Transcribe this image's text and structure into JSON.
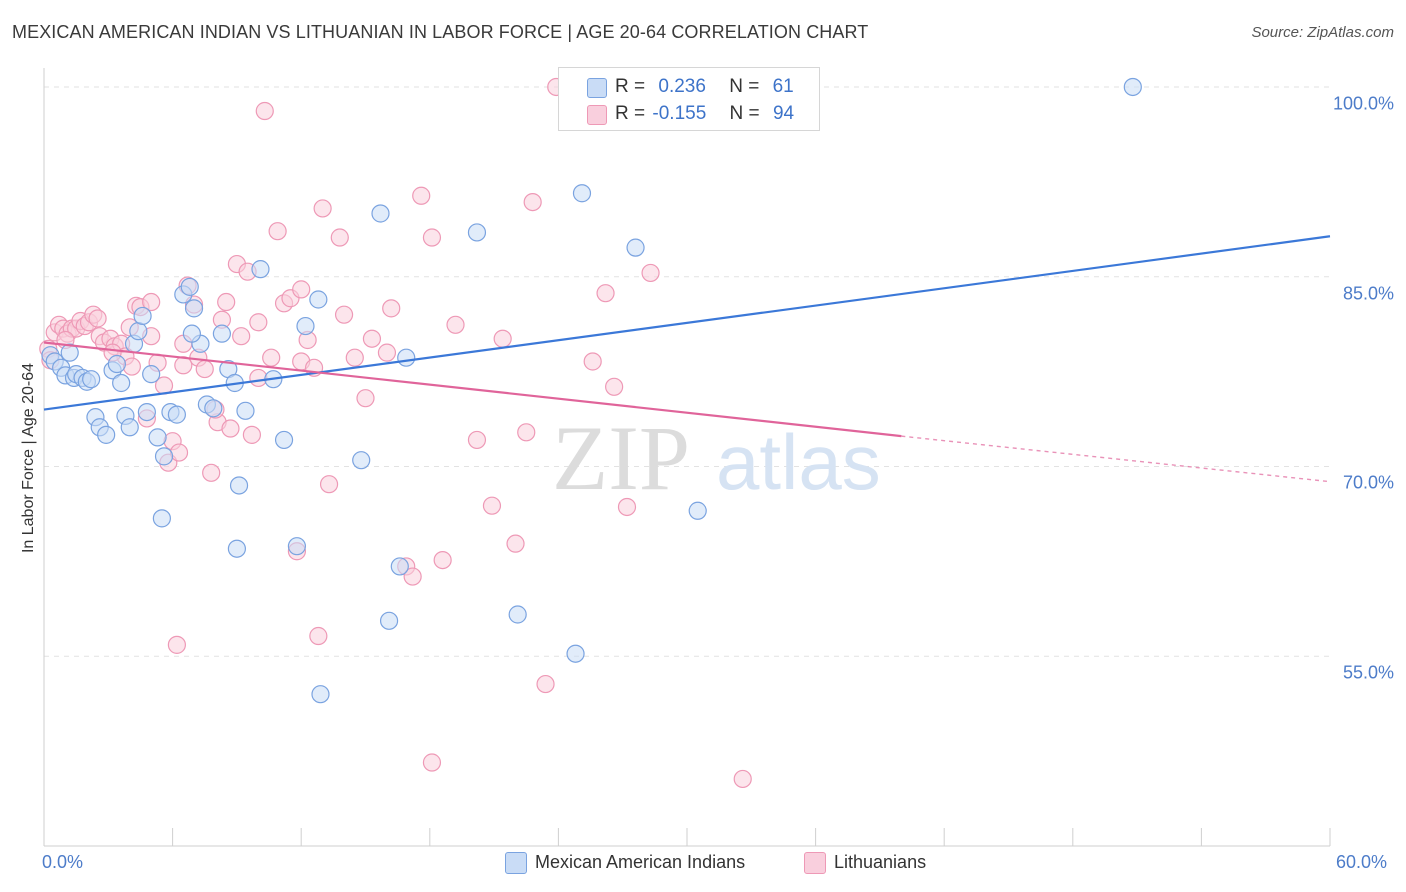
{
  "title": "MEXICAN AMERICAN INDIAN VS LITHUANIAN IN LABOR FORCE | AGE 20-64 CORRELATION CHART",
  "source": "Source: ZipAtlas.com",
  "watermark": {
    "zip": "ZIP",
    "atlas": "atlas"
  },
  "legend": {
    "r_label": "R =",
    "n_label": "N =",
    "blue": {
      "r": "0.236",
      "n": "61"
    },
    "pink": {
      "r": "-0.155",
      "n": "94"
    }
  },
  "bottom_legend": {
    "blue": "Mexican American Indians",
    "pink": "Lithuanians"
  },
  "colors": {
    "blue": "#3b78d8",
    "pink": "#e0649a",
    "blue_fill": "#c9dcf6",
    "pink_fill": "#f9cfdd",
    "tick": "#4d7cc9"
  },
  "chart_data": {
    "type": "scatter",
    "title": "MEXICAN AMERICAN INDIAN VS LITHUANIAN IN LABOR FORCE | AGE 20-64 CORRELATION CHART",
    "xlabel": "",
    "ylabel": "In Labor Force | Age 20-64",
    "xlim": [
      0,
      60
    ],
    "ylim": [
      40,
      101.5
    ],
    "x_tick_labels": [
      {
        "value": 0,
        "label": "0.0%"
      },
      {
        "value": 60,
        "label": "60.0%"
      }
    ],
    "y_tick_labels": [
      {
        "value": 100,
        "label": "100.0%"
      },
      {
        "value": 85,
        "label": "85.0%"
      },
      {
        "value": 70,
        "label": "70.0%"
      },
      {
        "value": 55,
        "label": "55.0%"
      }
    ],
    "series": [
      {
        "name": "Mexican American Indians",
        "color": "#3b78d8",
        "r": 0.236,
        "n": 61,
        "trend": {
          "x0": 0,
          "y0": 74.5,
          "x1": 60,
          "y1": 88.2
        },
        "points": [
          [
            0.3,
            78.8
          ],
          [
            0.5,
            78.3
          ],
          [
            0.8,
            77.8
          ],
          [
            1.0,
            77.2
          ],
          [
            1.2,
            79.0
          ],
          [
            1.4,
            77.0
          ],
          [
            1.5,
            77.3
          ],
          [
            1.8,
            77.0
          ],
          [
            2.0,
            76.7
          ],
          [
            2.2,
            76.9
          ],
          [
            2.4,
            73.9
          ],
          [
            2.6,
            73.1
          ],
          [
            2.9,
            72.5
          ],
          [
            3.2,
            77.6
          ],
          [
            3.4,
            78.1
          ],
          [
            3.6,
            76.6
          ],
          [
            3.8,
            74.0
          ],
          [
            4.0,
            73.1
          ],
          [
            4.2,
            79.7
          ],
          [
            4.4,
            80.7
          ],
          [
            4.6,
            81.9
          ],
          [
            4.8,
            74.3
          ],
          [
            5.0,
            77.3
          ],
          [
            5.3,
            72.3
          ],
          [
            5.6,
            70.8
          ],
          [
            5.9,
            74.3
          ],
          [
            6.2,
            74.1
          ],
          [
            6.5,
            83.6
          ],
          [
            6.8,
            84.2
          ],
          [
            7.0,
            82.5
          ],
          [
            7.3,
            79.7
          ],
          [
            7.6,
            74.9
          ],
          [
            7.9,
            74.6
          ],
          [
            8.3,
            80.5
          ],
          [
            8.6,
            77.7
          ],
          [
            8.9,
            76.6
          ],
          [
            9.1,
            68.5
          ],
          [
            9.4,
            74.4
          ],
          [
            10.1,
            85.6
          ],
          [
            10.7,
            76.9
          ],
          [
            11.2,
            72.1
          ],
          [
            11.8,
            63.7
          ],
          [
            12.2,
            81.1
          ],
          [
            12.8,
            83.2
          ],
          [
            14.8,
            70.5
          ],
          [
            15.7,
            90.0
          ],
          [
            16.1,
            57.8
          ],
          [
            16.6,
            62.1
          ],
          [
            16.9,
            78.6
          ],
          [
            20.2,
            88.5
          ],
          [
            22.1,
            58.3
          ],
          [
            24.8,
            55.2
          ],
          [
            25.1,
            91.6
          ],
          [
            27.6,
            87.3
          ],
          [
            30.5,
            66.5
          ],
          [
            34.2,
            100.0
          ],
          [
            50.8,
            100.0
          ],
          [
            5.5,
            65.9
          ],
          [
            9.0,
            63.5
          ],
          [
            12.9,
            52.0
          ],
          [
            6.9,
            80.5
          ]
        ]
      },
      {
        "name": "Lithuanians",
        "color": "#e0649a",
        "r": -0.155,
        "n": 94,
        "trend": {
          "x0": 0,
          "y0": 79.8,
          "x1": 40,
          "y1": 72.4,
          "dash_to_x": 60,
          "dash_to_y": 68.8
        },
        "points": [
          [
            0.2,
            79.3
          ],
          [
            0.3,
            78.4
          ],
          [
            0.5,
            80.6
          ],
          [
            0.7,
            81.2
          ],
          [
            0.9,
            80.9
          ],
          [
            1.1,
            80.5
          ],
          [
            1.3,
            80.9
          ],
          [
            1.5,
            80.9
          ],
          [
            1.7,
            81.5
          ],
          [
            1.9,
            81.1
          ],
          [
            2.1,
            81.4
          ],
          [
            2.3,
            82.0
          ],
          [
            2.6,
            80.3
          ],
          [
            2.8,
            79.8
          ],
          [
            3.1,
            80.1
          ],
          [
            3.3,
            79.5
          ],
          [
            3.6,
            79.7
          ],
          [
            3.8,
            78.7
          ],
          [
            4.1,
            77.9
          ],
          [
            4.3,
            82.7
          ],
          [
            4.5,
            82.6
          ],
          [
            4.8,
            73.8
          ],
          [
            5.0,
            80.3
          ],
          [
            5.3,
            78.2
          ],
          [
            5.6,
            76.4
          ],
          [
            5.8,
            70.3
          ],
          [
            6.0,
            72.0
          ],
          [
            6.3,
            71.1
          ],
          [
            6.5,
            79.7
          ],
          [
            6.7,
            84.3
          ],
          [
            7.0,
            82.8
          ],
          [
            7.2,
            78.6
          ],
          [
            7.5,
            77.7
          ],
          [
            7.8,
            69.5
          ],
          [
            8.1,
            73.5
          ],
          [
            8.3,
            81.6
          ],
          [
            8.5,
            83.0
          ],
          [
            8.7,
            73.0
          ],
          [
            9.0,
            86.0
          ],
          [
            9.2,
            80.3
          ],
          [
            9.5,
            85.4
          ],
          [
            9.7,
            72.5
          ],
          [
            10.0,
            81.4
          ],
          [
            10.3,
            98.1
          ],
          [
            10.6,
            78.6
          ],
          [
            10.9,
            88.6
          ],
          [
            11.2,
            82.9
          ],
          [
            11.5,
            83.3
          ],
          [
            11.8,
            63.3
          ],
          [
            12.0,
            78.3
          ],
          [
            12.3,
            80.0
          ],
          [
            12.6,
            77.8
          ],
          [
            12.8,
            56.6
          ],
          [
            13.0,
            90.4
          ],
          [
            13.3,
            68.6
          ],
          [
            13.8,
            88.1
          ],
          [
            14.5,
            78.6
          ],
          [
            15.0,
            75.4
          ],
          [
            15.3,
            80.1
          ],
          [
            16.2,
            82.5
          ],
          [
            16.9,
            62.1
          ],
          [
            17.2,
            61.3
          ],
          [
            17.6,
            91.4
          ],
          [
            18.1,
            88.1
          ],
          [
            18.6,
            62.6
          ],
          [
            19.2,
            81.2
          ],
          [
            20.2,
            72.1
          ],
          [
            20.9,
            66.9
          ],
          [
            21.4,
            80.1
          ],
          [
            22.0,
            63.9
          ],
          [
            22.5,
            72.7
          ],
          [
            22.8,
            90.9
          ],
          [
            23.4,
            52.8
          ],
          [
            23.9,
            100.0
          ],
          [
            25.6,
            78.3
          ],
          [
            26.2,
            83.7
          ],
          [
            26.6,
            76.3
          ],
          [
            27.2,
            66.8
          ],
          [
            28.3,
            85.3
          ],
          [
            30.1,
            100.0
          ],
          [
            32.6,
            45.3
          ],
          [
            6.2,
            55.9
          ],
          [
            18.1,
            46.6
          ],
          [
            2.5,
            81.7
          ],
          [
            3.2,
            79.0
          ],
          [
            4.0,
            81.0
          ],
          [
            6.5,
            78.0
          ],
          [
            8.0,
            74.5
          ],
          [
            10.0,
            77.0
          ],
          [
            12.0,
            84.0
          ],
          [
            14.0,
            82.0
          ],
          [
            16.0,
            79.0
          ],
          [
            1.0,
            80.0
          ],
          [
            5.0,
            83.0
          ]
        ]
      }
    ],
    "grid": true,
    "legend_position": "top-center"
  }
}
